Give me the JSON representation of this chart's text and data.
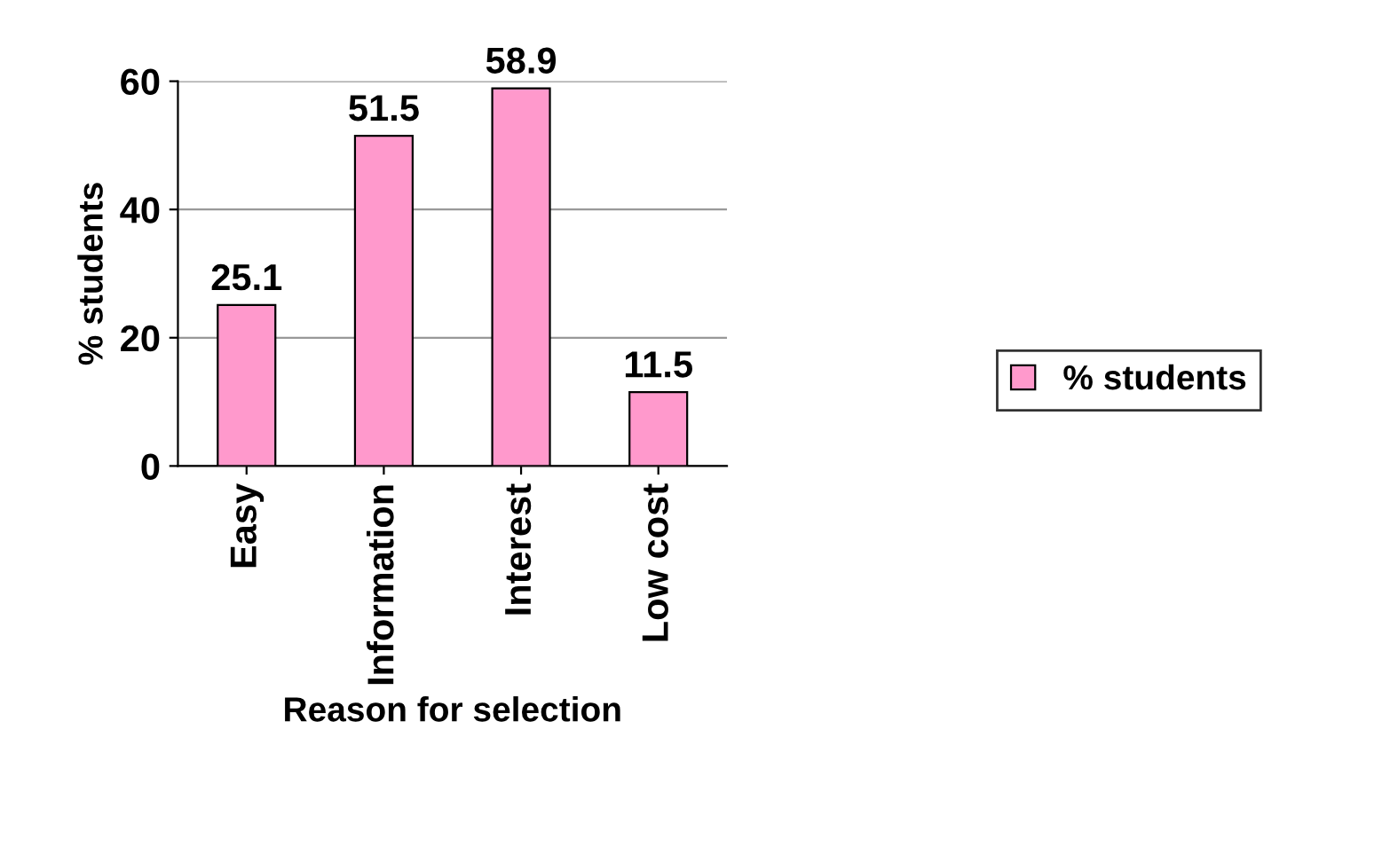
{
  "chart_data": {
    "type": "bar",
    "xlabel": "Reason for selection",
    "ylabel": "% students",
    "categories": [
      "Easy",
      "Information",
      "Interest",
      "Low cost"
    ],
    "series": [
      {
        "name": "% students",
        "color": "#ff99cc",
        "values": [
          25.1,
          51.5,
          58.9,
          11.5
        ]
      }
    ],
    "ylim": [
      0,
      60
    ],
    "yticks": [
      0,
      20,
      40,
      60
    ],
    "grid": "y",
    "legend": "right",
    "data_labels": true
  }
}
